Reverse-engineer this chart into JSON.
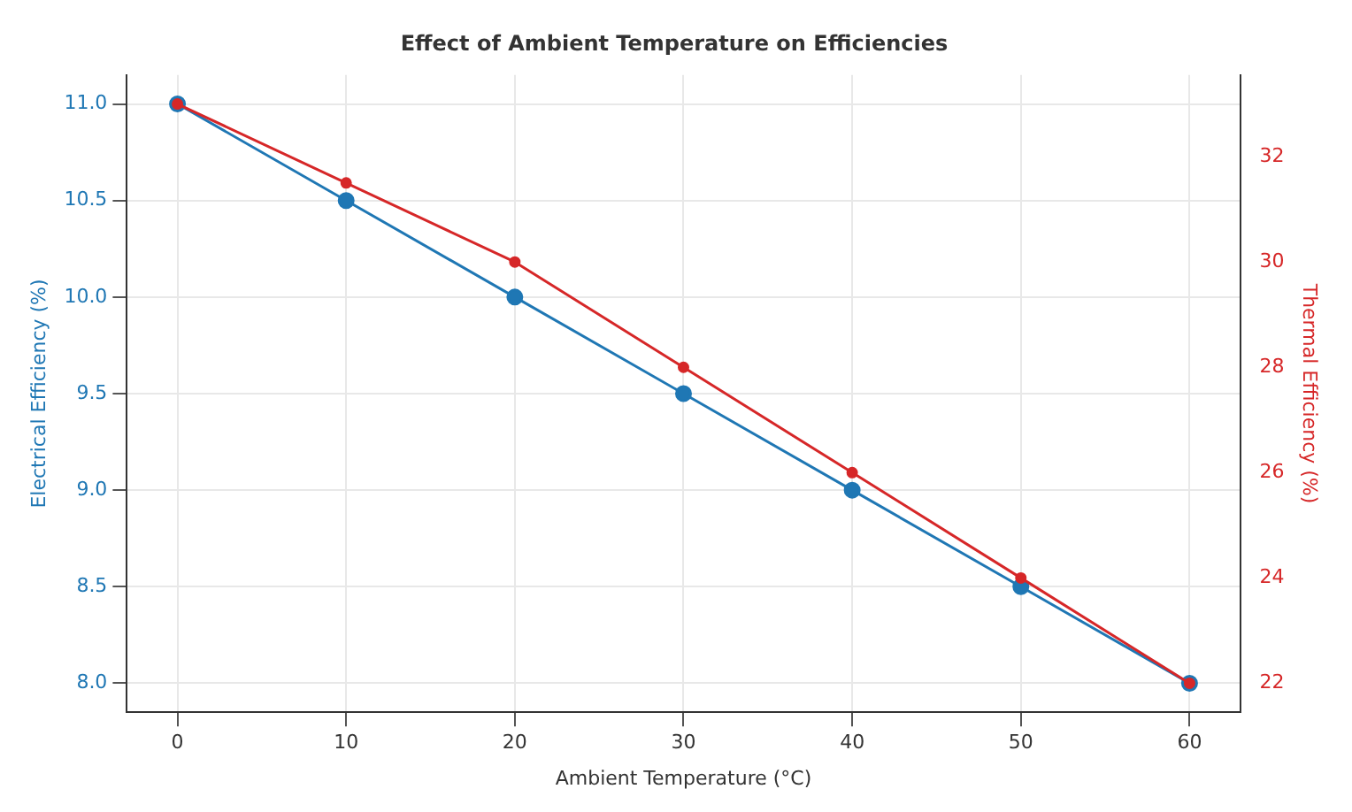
{
  "chart_data": {
    "type": "line",
    "title": "Effect of Ambient Temperature on Efficiencies",
    "xlabel": "Ambient Temperature (°C)",
    "ylabel": "Electrical Efficiency (%)",
    "y2label": "Thermal Efficiency (%)",
    "x": [
      0,
      10,
      20,
      30,
      40,
      50,
      60
    ],
    "series": [
      {
        "name": null,
        "color": "#1f77b4",
        "values": [
          11,
          10.5,
          10,
          9.5,
          9,
          8.5,
          8
        ]
      },
      {
        "axis": "y2",
        "color": "#d62728",
        "values": [
          33,
          31.5,
          30,
          28,
          26,
          24,
          22
        ]
      }
    ],
    "xlim": [
      -3,
      63
    ],
    "xticks": [
      0,
      10,
      20,
      30,
      40,
      50,
      60
    ],
    "ylim": [
      7.85,
      11.15
    ],
    "yticks": [
      {
        "value": 8,
        "label": "8.0"
      },
      {
        "value": 8.5,
        "label": "8.5"
      },
      {
        "value": 9,
        "label": "9.0"
      },
      {
        "value": 9.5,
        "label": "9.5"
      },
      {
        "value": 10,
        "label": "10.0"
      },
      {
        "value": 10.5,
        "label": "10.5"
      },
      {
        "value": 11,
        "label": "11.0"
      }
    ],
    "y2lim": [
      21.45,
      33.55
    ],
    "y2ticks": [
      22,
      24,
      26,
      28,
      30,
      32
    ],
    "grid": true,
    "legend": false,
    "marker": "circle",
    "line_style": "solid"
  }
}
